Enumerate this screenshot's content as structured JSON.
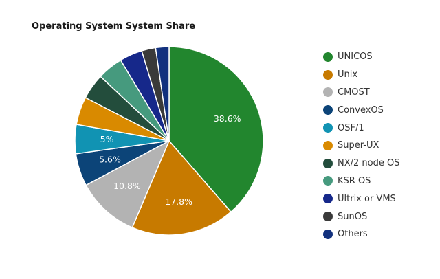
{
  "chart_data": {
    "type": "pie",
    "title": "Operating System System Share",
    "legend_position": "right",
    "slices": [
      {
        "label": "UNICOS",
        "value": 38.6,
        "color": "#22862e",
        "display": "38.6%"
      },
      {
        "label": "Unix",
        "value": 17.8,
        "color": "#c77a00",
        "display": "17.8%"
      },
      {
        "label": "CMOST",
        "value": 10.8,
        "color": "#b3b3b3",
        "display": "10.8%"
      },
      {
        "label": "ConvexOS",
        "value": 5.6,
        "color": "#0c4478",
        "display": "5.6%"
      },
      {
        "label": "OSF/1",
        "value": 5.0,
        "color": "#1193b3",
        "display": "5%"
      },
      {
        "label": "Super-UX",
        "value": 4.8,
        "color": "#d98a00",
        "display": ""
      },
      {
        "label": "NX/2 node OS",
        "value": 4.4,
        "color": "#234d3c",
        "display": ""
      },
      {
        "label": "KSR OS",
        "value": 4.4,
        "color": "#469a7e",
        "display": ""
      },
      {
        "label": "Ultrix or VMS",
        "value": 3.9,
        "color": "#16288a",
        "display": ""
      },
      {
        "label": "SunOS",
        "value": 2.4,
        "color": "#3a3a3a",
        "display": ""
      },
      {
        "label": "Others",
        "value": 2.3,
        "color": "#12317e",
        "display": ""
      }
    ]
  }
}
